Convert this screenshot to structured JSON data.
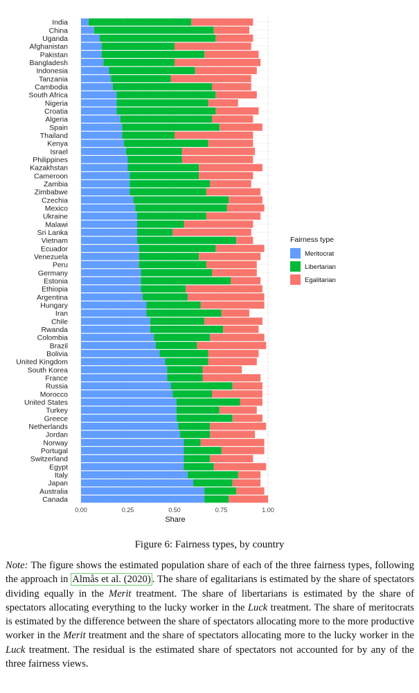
{
  "chart_data": {
    "type": "bar",
    "orientation": "horizontal",
    "stacked": true,
    "xlabel": "Share",
    "xlim": [
      0,
      1
    ],
    "xticks": [
      "0.00",
      "0.25",
      "0.50",
      "0.75",
      "1.00"
    ],
    "grid": true,
    "legend": {
      "title": "Fairness type",
      "placement": "right",
      "entries": [
        "Meritocrat",
        "Libertarian",
        "Egalitarian"
      ]
    },
    "colors": {
      "Meritocrat": "#619CFF",
      "Libertarian": "#00BA38",
      "Egalitarian": "#F8766D"
    },
    "categories": [
      "India",
      "China",
      "Uganda",
      "Afghanistan",
      "Pakistan",
      "Bangladesh",
      "Indonesia",
      "Tanzania",
      "Cambodia",
      "South Africa",
      "Nigeria",
      "Croatia",
      "Algeria",
      "Spain",
      "Thailand",
      "Kenya",
      "Israel",
      "Philippines",
      "Kazakhstan",
      "Cameroon",
      "Zambia",
      "Zimbabwe",
      "Czechia",
      "Mexico",
      "Ukraine",
      "Malawi",
      "Sri Lanka",
      "Vietnam",
      "Ecuador",
      "Venezuela",
      "Peru",
      "Germany",
      "Estonia",
      "Ethiopia",
      "Argentina",
      "Hungary",
      "Iran",
      "Chile",
      "Rwanda",
      "Colombia",
      "Brazil",
      "Bolivia",
      "United Kingdom",
      "South Korea",
      "France",
      "Russia",
      "Morocco",
      "United States",
      "Turkey",
      "Greece",
      "Netherlands",
      "Jordan",
      "Norway",
      "Portugal",
      "Switzerland",
      "Egypt",
      "Italy",
      "Japan",
      "Australia",
      "Canada"
    ],
    "series": [
      {
        "name": "Meritocrat",
        "values": [
          0.04,
          0.07,
          0.1,
          0.11,
          0.11,
          0.12,
          0.15,
          0.16,
          0.17,
          0.19,
          0.19,
          0.19,
          0.21,
          0.22,
          0.22,
          0.23,
          0.24,
          0.25,
          0.25,
          0.26,
          0.26,
          0.26,
          0.28,
          0.29,
          0.3,
          0.3,
          0.3,
          0.3,
          0.31,
          0.31,
          0.31,
          0.32,
          0.32,
          0.32,
          0.33,
          0.35,
          0.35,
          0.37,
          0.37,
          0.39,
          0.4,
          0.42,
          0.45,
          0.46,
          0.46,
          0.48,
          0.49,
          0.51,
          0.51,
          0.51,
          0.52,
          0.53,
          0.55,
          0.55,
          0.55,
          0.55,
          0.57,
          0.6,
          0.66,
          0.66
        ]
      },
      {
        "name": "Libertarian",
        "values": [
          0.55,
          0.64,
          0.62,
          0.39,
          0.55,
          0.38,
          0.46,
          0.32,
          0.53,
          0.53,
          0.49,
          0.53,
          0.49,
          0.52,
          0.28,
          0.45,
          0.3,
          0.29,
          0.38,
          0.37,
          0.43,
          0.41,
          0.51,
          0.49,
          0.37,
          0.25,
          0.19,
          0.53,
          0.41,
          0.32,
          0.36,
          0.38,
          0.48,
          0.24,
          0.24,
          0.29,
          0.4,
          0.29,
          0.39,
          0.3,
          0.22,
          0.26,
          0.23,
          0.19,
          0.19,
          0.33,
          0.21,
          0.34,
          0.23,
          0.3,
          0.17,
          0.16,
          0.09,
          0.2,
          0.14,
          0.16,
          0.27,
          0.21,
          0.17,
          0.13
        ]
      },
      {
        "name": "Egalitarian",
        "values": [
          0.33,
          0.19,
          0.2,
          0.41,
          0.29,
          0.46,
          0.33,
          0.43,
          0.21,
          0.22,
          0.16,
          0.23,
          0.22,
          0.23,
          0.42,
          0.24,
          0.39,
          0.38,
          0.34,
          0.29,
          0.22,
          0.29,
          0.18,
          0.2,
          0.29,
          0.37,
          0.42,
          0.09,
          0.26,
          0.33,
          0.27,
          0.24,
          0.16,
          0.41,
          0.41,
          0.34,
          0.15,
          0.31,
          0.19,
          0.29,
          0.37,
          0.27,
          0.26,
          0.21,
          0.31,
          0.16,
          0.27,
          0.12,
          0.2,
          0.16,
          0.3,
          0.24,
          0.34,
          0.23,
          0.23,
          0.28,
          0.12,
          0.15,
          0.15,
          0.21
        ]
      }
    ]
  },
  "caption": "Figure 6: Fairness types, by country",
  "note": {
    "label": "Note:",
    "p1": " The figure shows the estimated population share of each of the three fairness types, following the approach in ",
    "cite_author": "Almås et al.",
    "cite_year": "2020",
    "p2": ". The share of egalitarians is estimated by the share of spectators dividing equally in the ",
    "merit1": "Merit",
    "p3": " treatment. The share of libertarians is estimated by the share of spectators allocating everything to the lucky worker in the ",
    "luck1": "Luck",
    "p4": " treatment. The share of meritocrats is estimated by the difference between the share of spectators allocating more to the more productive worker in the ",
    "merit2": "Merit",
    "p5": " treatment and the share of spectators allocating more to the lucky worker in the ",
    "luck2": "Luck",
    "p6": " treatment. The residual is the estimated share of spectators not accounted for by any of the three fairness views."
  }
}
